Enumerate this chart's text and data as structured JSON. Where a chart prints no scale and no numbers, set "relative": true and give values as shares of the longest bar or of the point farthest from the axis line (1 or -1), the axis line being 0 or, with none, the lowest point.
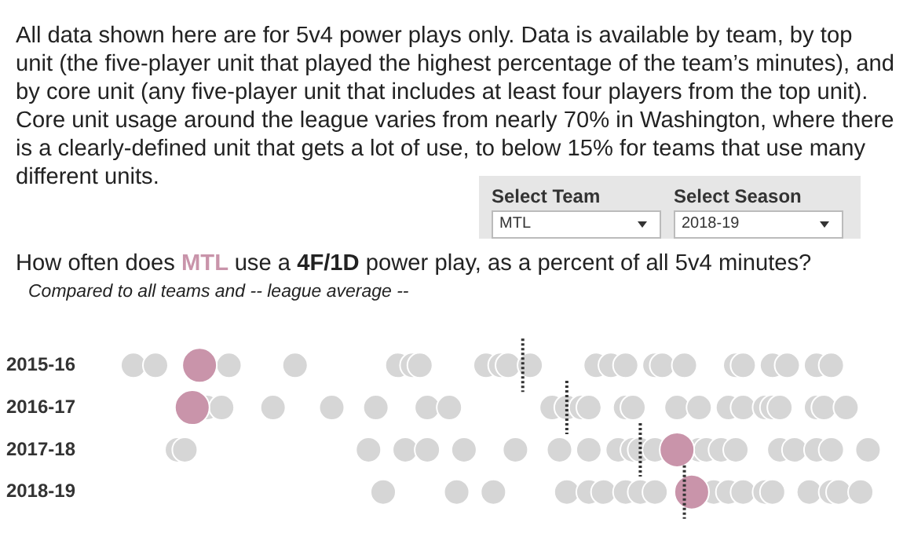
{
  "chart_data": {
    "type": "scatter",
    "orientation": "horizontal",
    "relative": true,
    "marker": "circle",
    "subtitle": "All data shown here are for 5v4 power plays only. Data is available by team, by top unit (the five-player unit that played the highest percentage of the team’s minutes), and by core unit (any five-player unit that includes at least four players from the top unit). Core unit usage around the league varies from nearly 70% in Washington, where there is a clearly-defined unit that gets a lot of use, to below 15% for teams that use many different units.",
    "title": "How often does MTL use a 4F/1D power play, as a percent of all 5v4 minutes?",
    "annotations": [
      "Compared to all teams and -- league average --",
      "Select Team",
      "MTL",
      "Select Season",
      "2018-19"
    ],
    "categories": [
      "2015-16",
      "2016-17",
      "2017-18",
      "2018-19"
    ],
    "series": [
      {
        "color": "#d6d6d6",
        "x": [
          "2015-16",
          "2015-16",
          "2015-16",
          "2015-16",
          "2015-16",
          "2015-16",
          "2015-16",
          "2015-16",
          "2015-16",
          "2015-16",
          "2015-16",
          "2015-16",
          "2015-16",
          "2015-16",
          "2015-16",
          "2015-16",
          "2015-16",
          "2015-16",
          "2015-16",
          "2015-16",
          "2015-16",
          "2015-16",
          "2015-16",
          "2016-17",
          "2016-17",
          "2016-17",
          "2016-17",
          "2016-17",
          "2016-17",
          "2016-17",
          "2016-17",
          "2016-17",
          "2016-17",
          "2016-17",
          "2016-17",
          "2016-17",
          "2016-17",
          "2016-17",
          "2016-17",
          "2016-17",
          "2016-17",
          "2016-17",
          "2016-17",
          "2016-17",
          "2016-17",
          "2016-17",
          "2017-18",
          "2017-18",
          "2017-18",
          "2017-18",
          "2017-18",
          "2017-18",
          "2017-18",
          "2017-18",
          "2017-18",
          "2017-18",
          "2017-18",
          "2017-18",
          "2017-18",
          "2017-18",
          "2017-18",
          "2017-18",
          "2017-18",
          "2017-18",
          "2017-18",
          "2017-18",
          "2017-18",
          "2017-18",
          "2018-19",
          "2018-19",
          "2018-19",
          "2018-19",
          "2018-19",
          "2018-19",
          "2018-19",
          "2018-19",
          "2018-19",
          "2018-19",
          "2018-19",
          "2018-19",
          "2018-19",
          "2018-19",
          "2018-19",
          "2018-19",
          "2018-19",
          "2018-19"
        ],
        "values": [
          0,
          0.03,
          0.13,
          0.22,
          0.36,
          0.38,
          0.39,
          0.48,
          0.5,
          0.51,
          0.54,
          0.63,
          0.65,
          0.67,
          0.71,
          0.72,
          0.75,
          0.82,
          0.83,
          0.87,
          0.89,
          0.93,
          0.95,
          0.1,
          0.12,
          0.19,
          0.27,
          0.33,
          0.4,
          0.43,
          0.57,
          0.59,
          0.61,
          0.62,
          0.67,
          0.68,
          0.74,
          0.77,
          0.81,
          0.83,
          0.86,
          0.87,
          0.88,
          0.93,
          0.94,
          0.97,
          0.06,
          0.07,
          0.32,
          0.37,
          0.4,
          0.45,
          0.52,
          0.58,
          0.62,
          0.66,
          0.68,
          0.69,
          0.71,
          0.77,
          0.78,
          0.8,
          0.82,
          0.88,
          0.9,
          0.93,
          0.95,
          1,
          0.34,
          0.44,
          0.49,
          0.59,
          0.62,
          0.64,
          0.67,
          0.69,
          0.71,
          0.79,
          0.81,
          0.83,
          0.86,
          0.87,
          0.92,
          0.95,
          0.96,
          0.99
        ]
      },
      {
        "color": "#c994aa",
        "x": [
          "2015-16",
          "2016-17",
          "2017-18",
          "2018-19"
        ],
        "values": [
          0.09,
          0.08,
          0.74,
          0.76
        ]
      }
    ],
    "ref_lines": [
      {
        "axis": "x",
        "value": 0.53,
        "line_style": "dotted",
        "color": "#333333"
      },
      {
        "axis": "x",
        "value": 0.59,
        "line_style": "dotted",
        "color": "#333333"
      },
      {
        "axis": "x",
        "value": 0.69,
        "line_style": "dotted",
        "color": "#333333"
      },
      {
        "axis": "x",
        "value": 0.75,
        "line_style": "dotted",
        "color": "#333333"
      }
    ]
  }
}
